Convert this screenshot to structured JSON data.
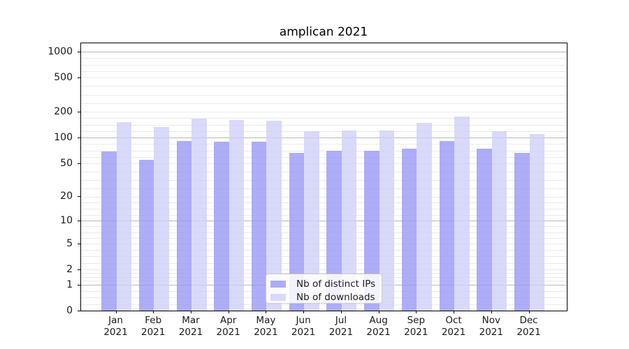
{
  "chart_data": {
    "type": "bar",
    "title": "amplican 2021",
    "categories": [
      "Jan 2021",
      "Feb 2021",
      "Mar 2021",
      "Apr 2021",
      "May 2021",
      "Jun 2021",
      "Jul 2021",
      "Aug 2021",
      "Sep 2021",
      "Oct 2021",
      "Nov 2021",
      "Dec 2021"
    ],
    "series": [
      {
        "name": "Nb of distinct IPs",
        "color": "#9898f6",
        "values": [
          69,
          55,
          92,
          89,
          89,
          66,
          70,
          70,
          74,
          92,
          74,
          66
        ]
      },
      {
        "name": "Nb of downloads",
        "color": "#d0d0f8",
        "values": [
          153,
          134,
          167,
          161,
          157,
          119,
          122,
          121,
          149,
          176,
          119,
          111
        ]
      }
    ],
    "xlabel": "",
    "ylabel": "",
    "yscale": "log1p",
    "yticks": [
      0,
      1,
      2,
      5,
      10,
      20,
      50,
      100,
      200,
      500,
      1000
    ],
    "major_gridlines": [
      1,
      10,
      100,
      1000
    ],
    "ylim": [
      0,
      1250
    ],
    "grid": "on",
    "legend_position": "lower-center"
  },
  "colors": {
    "major_grid": "#b8b8b8",
    "minor_grid": "#eaeaea",
    "axis": "#000000",
    "text": "#1a1a1a"
  }
}
